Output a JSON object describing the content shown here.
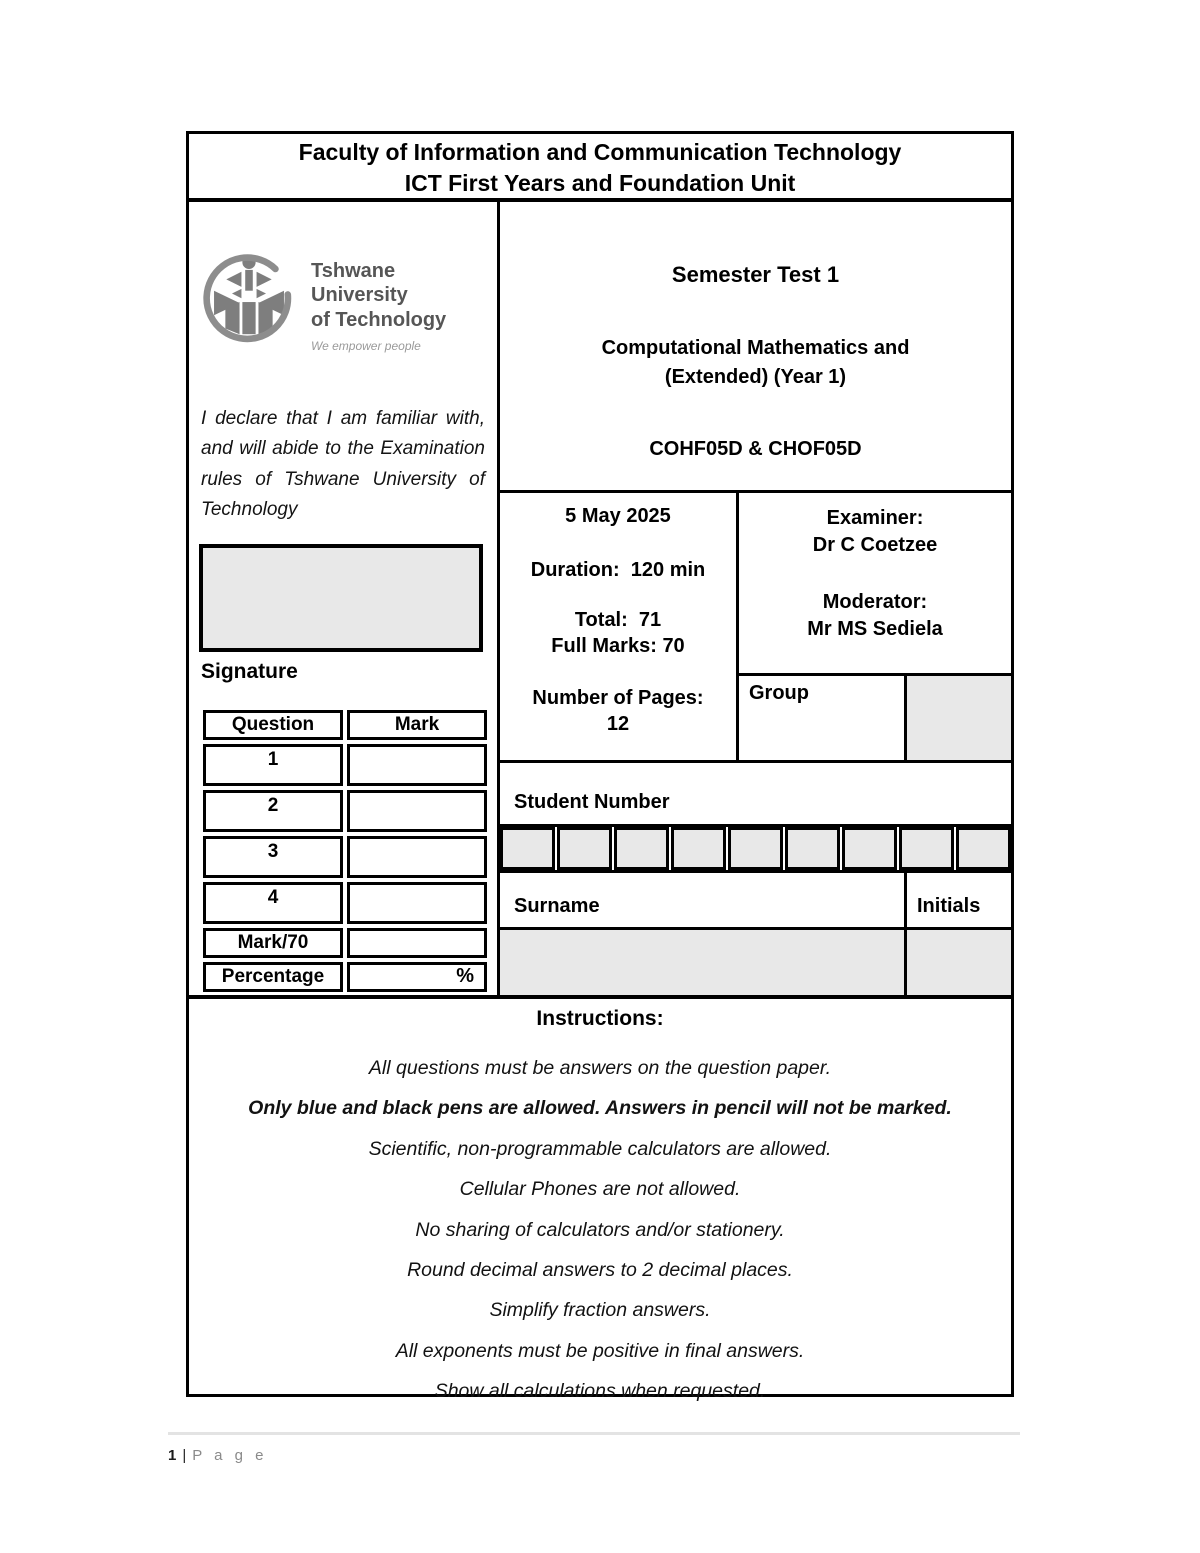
{
  "header": {
    "line1": "Faculty of Information and Communication Technology",
    "line2": "ICT First Years and Foundation Unit"
  },
  "logo": {
    "name_line1": "Tshwane University",
    "name_line2": "of Technology",
    "tagline": "We empower people",
    "emblem_color": "#7e7e7e"
  },
  "left_panel": {
    "declaration": "I declare that I am familiar with, and will abide to the Examination rules of Tshwane University of Technology",
    "signature_label": "Signature",
    "marks_table": {
      "headers": [
        "Question",
        "Mark"
      ],
      "rows": [
        {
          "question": "1",
          "mark": ""
        },
        {
          "question": "2",
          "mark": ""
        },
        {
          "question": "3",
          "mark": ""
        },
        {
          "question": "4",
          "mark": ""
        },
        {
          "question": "Mark/70",
          "mark": ""
        },
        {
          "question": "Percentage",
          "mark": "%"
        }
      ]
    }
  },
  "test_info": {
    "title": "Semester Test 1",
    "subject_line1": "Computational Mathematics and",
    "subject_line2": "(Extended) (Year 1)",
    "codes": "COHF05D & CHOF05D",
    "date": "5 May 2025",
    "duration_label": "Duration:",
    "duration_value": "120 min",
    "total_label": "Total:",
    "total_value": "71",
    "full_marks_label": "Full Marks:",
    "full_marks_value": "70",
    "pages_label": "Number of Pages:",
    "pages_value": "12",
    "examiner_label": "Examiner:",
    "examiner_name": "Dr C Coetzee",
    "moderator_label": "Moderator:",
    "moderator_name": "Mr MS Sediela",
    "group_label": "Group"
  },
  "student_section": {
    "student_number_label": "Student Number",
    "digit_box_count": 9,
    "surname_label": "Surname",
    "initials_label": "Initials"
  },
  "instructions": {
    "title": "Instructions:",
    "lines": [
      {
        "text": "All questions must be answers on the question paper.",
        "bold": false
      },
      {
        "text": "Only blue and black pens are allowed. Answers in pencil will not be marked.",
        "bold": true
      },
      {
        "text": "Scientific, non-programmable calculators are allowed.",
        "bold": false
      },
      {
        "text": "Cellular Phones are not allowed.",
        "bold": false
      },
      {
        "text": "No sharing of calculators and/or stationery.",
        "bold": false
      },
      {
        "text": "Round decimal answers to 2 decimal places.",
        "bold": false
      },
      {
        "text": "Simplify fraction answers.",
        "bold": false
      },
      {
        "text": "All exponents must be positive in final answers.",
        "bold": false
      },
      {
        "text": "Show all calculations when requested.",
        "bold": false
      }
    ]
  },
  "footer": {
    "page_number": "1",
    "separator": "|",
    "page_label": "P a g e"
  },
  "colors": {
    "border": "#000000",
    "input_fill": "#e8e8e8",
    "footer_rule": "#e3e3e3"
  }
}
